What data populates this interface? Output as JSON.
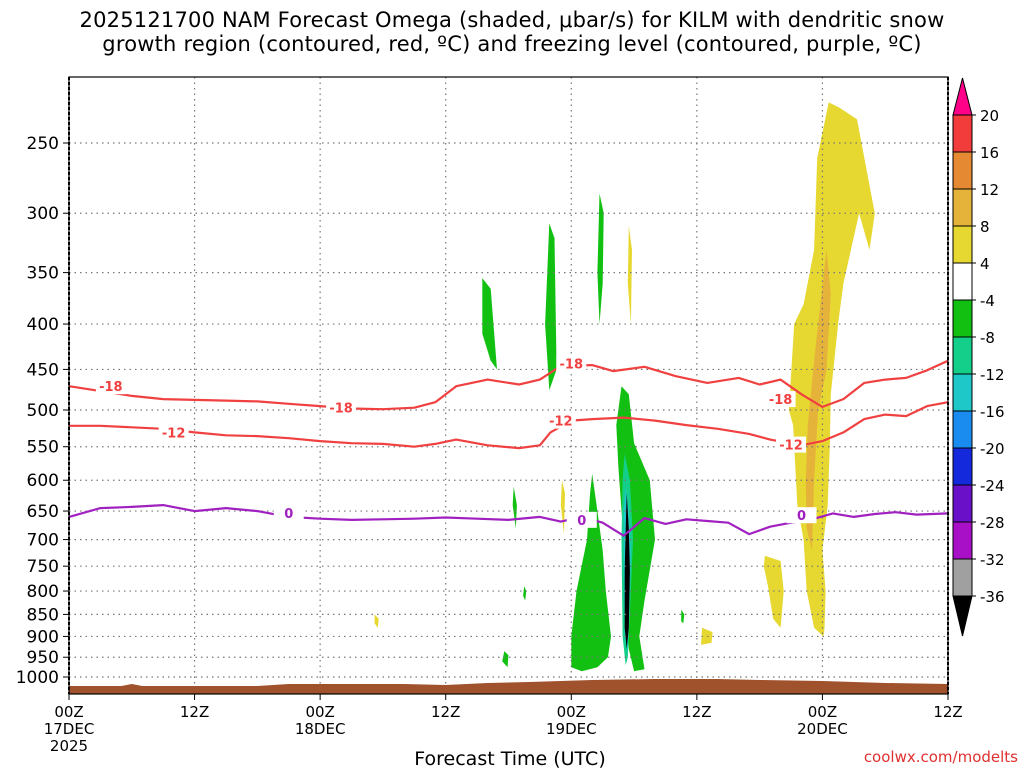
{
  "title_line1": "2025121700 NAM Forecast Omega (shaded, μbar/s) for KILM with dendritic snow",
  "title_line2": "growth region (contoured, red, ºC) and freezing level (contoured, purple, ºC)",
  "credit": "coolwx.com/modelts",
  "chart_data": {
    "type": "time-height",
    "xlabel": "Forecast Time (UTC)",
    "ylabel": "",
    "x_ticks": [
      {
        "hours": 0,
        "l1": "00Z",
        "l2": "17DEC",
        "l3": "2025"
      },
      {
        "hours": 12,
        "l1": "12Z",
        "l2": "",
        "l3": ""
      },
      {
        "hours": 24,
        "l1": "00Z",
        "l2": "18DEC",
        "l3": ""
      },
      {
        "hours": 36,
        "l1": "12Z",
        "l2": "",
        "l3": ""
      },
      {
        "hours": 48,
        "l1": "00Z",
        "l2": "19DEC",
        "l3": ""
      },
      {
        "hours": 60,
        "l1": "12Z",
        "l2": "",
        "l3": ""
      },
      {
        "hours": 72,
        "l1": "00Z",
        "l2": "20DEC",
        "l3": ""
      },
      {
        "hours": 84,
        "l1": "12Z",
        "l2": "",
        "l3": ""
      }
    ],
    "xlim": [
      0,
      84
    ],
    "y_ticks": [
      250,
      300,
      350,
      400,
      450,
      500,
      550,
      600,
      650,
      700,
      750,
      800,
      850,
      900,
      950,
      1000
    ],
    "ylim": [
      1030,
      200
    ],
    "y_log": true,
    "grid": true,
    "colorbar": {
      "labels": [
        "20",
        "16",
        "12",
        "8",
        "4",
        "-4",
        "-8",
        "-12",
        "-16",
        "-20",
        "-24",
        "-28",
        "-32",
        "-36"
      ],
      "colors": [
        "#ff0088",
        "#f23c3c",
        "#e58a32",
        "#e6b33a",
        "#e6d830",
        "#ffffff",
        "#12c012",
        "#14cf8a",
        "#1ec8c8",
        "#1a8cf0",
        "#1428dc",
        "#6a10c8",
        "#a810c8",
        "#a0a0a0",
        "#000000"
      ]
    },
    "contours": [
      {
        "label": "-18",
        "color": "#f04040",
        "points": [
          [
            0,
            470
          ],
          [
            3,
            476
          ],
          [
            6,
            482
          ],
          [
            9,
            486
          ],
          [
            12,
            487
          ],
          [
            15,
            488
          ],
          [
            18,
            489
          ],
          [
            21,
            492
          ],
          [
            24,
            495
          ],
          [
            27,
            498
          ],
          [
            30,
            499
          ],
          [
            33,
            497
          ],
          [
            35,
            490
          ],
          [
            37,
            470
          ],
          [
            40,
            462
          ],
          [
            43,
            468
          ],
          [
            45,
            462
          ],
          [
            47,
            446
          ],
          [
            50,
            445
          ],
          [
            52,
            452
          ],
          [
            55,
            447
          ],
          [
            58,
            458
          ],
          [
            61,
            466
          ],
          [
            64,
            460
          ],
          [
            66,
            468
          ],
          [
            68,
            462
          ],
          [
            70,
            480
          ],
          [
            72,
            496
          ],
          [
            74,
            486
          ],
          [
            76,
            466
          ],
          [
            78,
            462
          ],
          [
            80,
            460
          ],
          [
            82,
            451
          ],
          [
            84,
            440
          ]
        ],
        "label_at": [
          [
            4,
            470
          ],
          [
            26,
            497
          ],
          [
            48,
            443
          ],
          [
            68,
            486
          ]
        ]
      },
      {
        "label": "-12",
        "color": "#f04040",
        "points": [
          [
            0,
            521
          ],
          [
            3,
            521
          ],
          [
            6,
            523
          ],
          [
            9,
            525
          ],
          [
            12,
            530
          ],
          [
            15,
            534
          ],
          [
            18,
            535
          ],
          [
            21,
            538
          ],
          [
            24,
            542
          ],
          [
            27,
            545
          ],
          [
            30,
            546
          ],
          [
            33,
            550
          ],
          [
            35,
            546
          ],
          [
            37,
            540
          ],
          [
            40,
            548
          ],
          [
            43,
            552
          ],
          [
            45,
            548
          ],
          [
            46,
            530
          ],
          [
            48,
            514
          ],
          [
            50,
            512
          ],
          [
            53,
            510
          ],
          [
            56,
            514
          ],
          [
            59,
            520
          ],
          [
            62,
            525
          ],
          [
            65,
            532
          ],
          [
            67,
            540
          ],
          [
            70,
            548
          ],
          [
            72,
            542
          ],
          [
            74,
            530
          ],
          [
            76,
            512
          ],
          [
            78,
            506
          ],
          [
            80,
            508
          ],
          [
            82,
            495
          ],
          [
            84,
            490
          ]
        ],
        "label_at": [
          [
            10,
            530
          ],
          [
            47,
            514
          ],
          [
            69,
            547
          ]
        ]
      },
      {
        "label": "0",
        "color": "#a020c0",
        "points": [
          [
            0,
            660
          ],
          [
            3,
            645
          ],
          [
            6,
            643
          ],
          [
            9,
            640
          ],
          [
            12,
            650
          ],
          [
            15,
            645
          ],
          [
            18,
            650
          ],
          [
            21,
            660
          ],
          [
            24,
            663
          ],
          [
            27,
            665
          ],
          [
            30,
            664
          ],
          [
            33,
            663
          ],
          [
            36,
            661
          ],
          [
            39,
            663
          ],
          [
            42,
            665
          ],
          [
            45,
            660
          ],
          [
            47,
            668
          ],
          [
            49,
            660
          ],
          [
            51,
            670
          ],
          [
            53,
            693
          ],
          [
            55,
            662
          ],
          [
            57,
            672
          ],
          [
            59,
            664
          ],
          [
            61,
            667
          ],
          [
            63,
            670
          ],
          [
            65,
            690
          ],
          [
            67,
            677
          ],
          [
            69,
            670
          ],
          [
            71,
            664
          ],
          [
            73,
            654
          ],
          [
            75,
            660
          ],
          [
            77,
            655
          ],
          [
            79,
            652
          ],
          [
            81,
            656
          ],
          [
            84,
            654
          ]
        ],
        "label_at": [
          [
            21,
            653
          ],
          [
            49,
            665
          ],
          [
            70,
            657
          ]
        ]
      }
    ],
    "shaded_regions": [
      {
        "value": -8,
        "hull": [
          [
            39.5,
            355
          ],
          [
            40.3,
            365
          ],
          [
            40.9,
            450
          ],
          [
            40.3,
            440
          ],
          [
            39.5,
            410
          ]
        ]
      },
      {
        "value": -8,
        "hull": [
          [
            45.9,
            308
          ],
          [
            46.4,
            320
          ],
          [
            46.6,
            450
          ],
          [
            45.9,
            475
          ],
          [
            45.5,
            400
          ]
        ]
      },
      {
        "value": -8,
        "hull": [
          [
            50.7,
            285
          ],
          [
            51.1,
            300
          ],
          [
            51.0,
            360
          ],
          [
            50.7,
            400
          ],
          [
            50.5,
            350
          ]
        ]
      },
      {
        "value": 4,
        "hull": [
          [
            53.5,
            310
          ],
          [
            53.8,
            330
          ],
          [
            53.7,
            400
          ],
          [
            53.4,
            360
          ]
        ]
      },
      {
        "value": -8,
        "hull": [
          [
            52.8,
            470
          ],
          [
            53.5,
            480
          ],
          [
            54.0,
            545
          ],
          [
            55.5,
            600
          ],
          [
            56.0,
            700
          ],
          [
            55.0,
            820
          ],
          [
            54.5,
            900
          ],
          [
            55.0,
            980
          ],
          [
            54.0,
            985
          ],
          [
            53.5,
            930
          ],
          [
            53.2,
            820
          ],
          [
            53.0,
            700
          ],
          [
            52.5,
            580
          ],
          [
            52.3,
            520
          ]
        ]
      },
      {
        "value": -8,
        "hull": [
          [
            50.0,
            590
          ],
          [
            50.5,
            650
          ],
          [
            51.0,
            720
          ],
          [
            51.3,
            800
          ],
          [
            51.8,
            900
          ],
          [
            51.5,
            950
          ],
          [
            50.5,
            975
          ],
          [
            49.0,
            985
          ],
          [
            48.0,
            975
          ],
          [
            48.0,
            900
          ],
          [
            48.5,
            800
          ],
          [
            49.5,
            700
          ],
          [
            49.8,
            620
          ]
        ]
      },
      {
        "value": -12,
        "hull": [
          [
            53.1,
            560
          ],
          [
            53.6,
            600
          ],
          [
            53.9,
            700
          ],
          [
            53.6,
            850
          ],
          [
            53.4,
            950
          ],
          [
            53.2,
            970
          ],
          [
            52.9,
            900
          ],
          [
            52.8,
            700
          ],
          [
            52.9,
            600
          ]
        ]
      },
      {
        "value": -16,
        "hull": [
          [
            53.2,
            610
          ],
          [
            53.5,
            650
          ],
          [
            53.7,
            720
          ],
          [
            53.5,
            850
          ],
          [
            53.4,
            940
          ],
          [
            53.1,
            900
          ],
          [
            53.0,
            750
          ],
          [
            53.0,
            650
          ]
        ]
      },
      {
        "value": -36,
        "hull": [
          [
            53.3,
            620
          ],
          [
            53.5,
            680
          ],
          [
            53.6,
            760
          ],
          [
            53.5,
            880
          ],
          [
            53.3,
            930
          ],
          [
            53.1,
            880
          ],
          [
            53.1,
            760
          ],
          [
            53.2,
            680
          ]
        ]
      },
      {
        "value": -8,
        "hull": [
          [
            42.5,
            610
          ],
          [
            42.8,
            640
          ],
          [
            42.7,
            680
          ],
          [
            42.4,
            640
          ]
        ]
      },
      {
        "value": 4,
        "hull": [
          [
            47.1,
            600
          ],
          [
            47.4,
            620
          ],
          [
            47.3,
            690
          ],
          [
            47.0,
            640
          ]
        ]
      },
      {
        "value": 4,
        "hull": [
          [
            72.6,
            225
          ],
          [
            73.6,
            228
          ],
          [
            75.3,
            235
          ],
          [
            77.0,
            300
          ],
          [
            76.5,
            330
          ],
          [
            75.5,
            300
          ],
          [
            74.0,
            360
          ],
          [
            73.5,
            400
          ],
          [
            72.8,
            480
          ],
          [
            72.7,
            550
          ],
          [
            72.5,
            640
          ],
          [
            72.0,
            720
          ],
          [
            72.3,
            800
          ],
          [
            72.2,
            880
          ],
          [
            72.1,
            900
          ],
          [
            71.2,
            880
          ],
          [
            70.5,
            800
          ],
          [
            70.2,
            700
          ],
          [
            69.6,
            640
          ],
          [
            69.2,
            520
          ],
          [
            68.8,
            500
          ],
          [
            69.3,
            400
          ],
          [
            70.2,
            380
          ],
          [
            71.2,
            330
          ],
          [
            71.5,
            260
          ]
        ]
      },
      {
        "value": 8,
        "hull": [
          [
            72.4,
            330
          ],
          [
            72.8,
            370
          ],
          [
            72.4,
            450
          ],
          [
            71.6,
            500
          ],
          [
            71.2,
            600
          ],
          [
            71.0,
            720
          ],
          [
            70.5,
            680
          ],
          [
            70.4,
            600
          ],
          [
            70.6,
            520
          ],
          [
            71.2,
            440
          ],
          [
            71.8,
            380
          ]
        ]
      },
      {
        "value": 4,
        "hull": [
          [
            66.5,
            730
          ],
          [
            68.0,
            740
          ],
          [
            68.3,
            800
          ],
          [
            68.0,
            880
          ],
          [
            67.3,
            860
          ],
          [
            66.8,
            790
          ],
          [
            66.4,
            750
          ]
        ]
      },
      {
        "value": 4,
        "hull": [
          [
            60.5,
            880
          ],
          [
            61.5,
            890
          ],
          [
            61.4,
            915
          ],
          [
            60.4,
            920
          ]
        ]
      },
      {
        "value": -8,
        "hull": [
          [
            41.6,
            935
          ],
          [
            42.0,
            945
          ],
          [
            41.9,
            975
          ],
          [
            41.4,
            960
          ]
        ]
      },
      {
        "value": -8,
        "hull": [
          [
            58.5,
            840
          ],
          [
            58.8,
            850
          ],
          [
            58.7,
            870
          ],
          [
            58.5,
            865
          ]
        ]
      },
      {
        "value": 4,
        "hull": [
          [
            29.2,
            850
          ],
          [
            29.6,
            860
          ],
          [
            29.5,
            880
          ],
          [
            29.2,
            870
          ]
        ]
      },
      {
        "value": -8,
        "hull": [
          [
            43.5,
            790
          ],
          [
            43.7,
            800
          ],
          [
            43.6,
            820
          ],
          [
            43.4,
            810
          ]
        ]
      }
    ]
  }
}
